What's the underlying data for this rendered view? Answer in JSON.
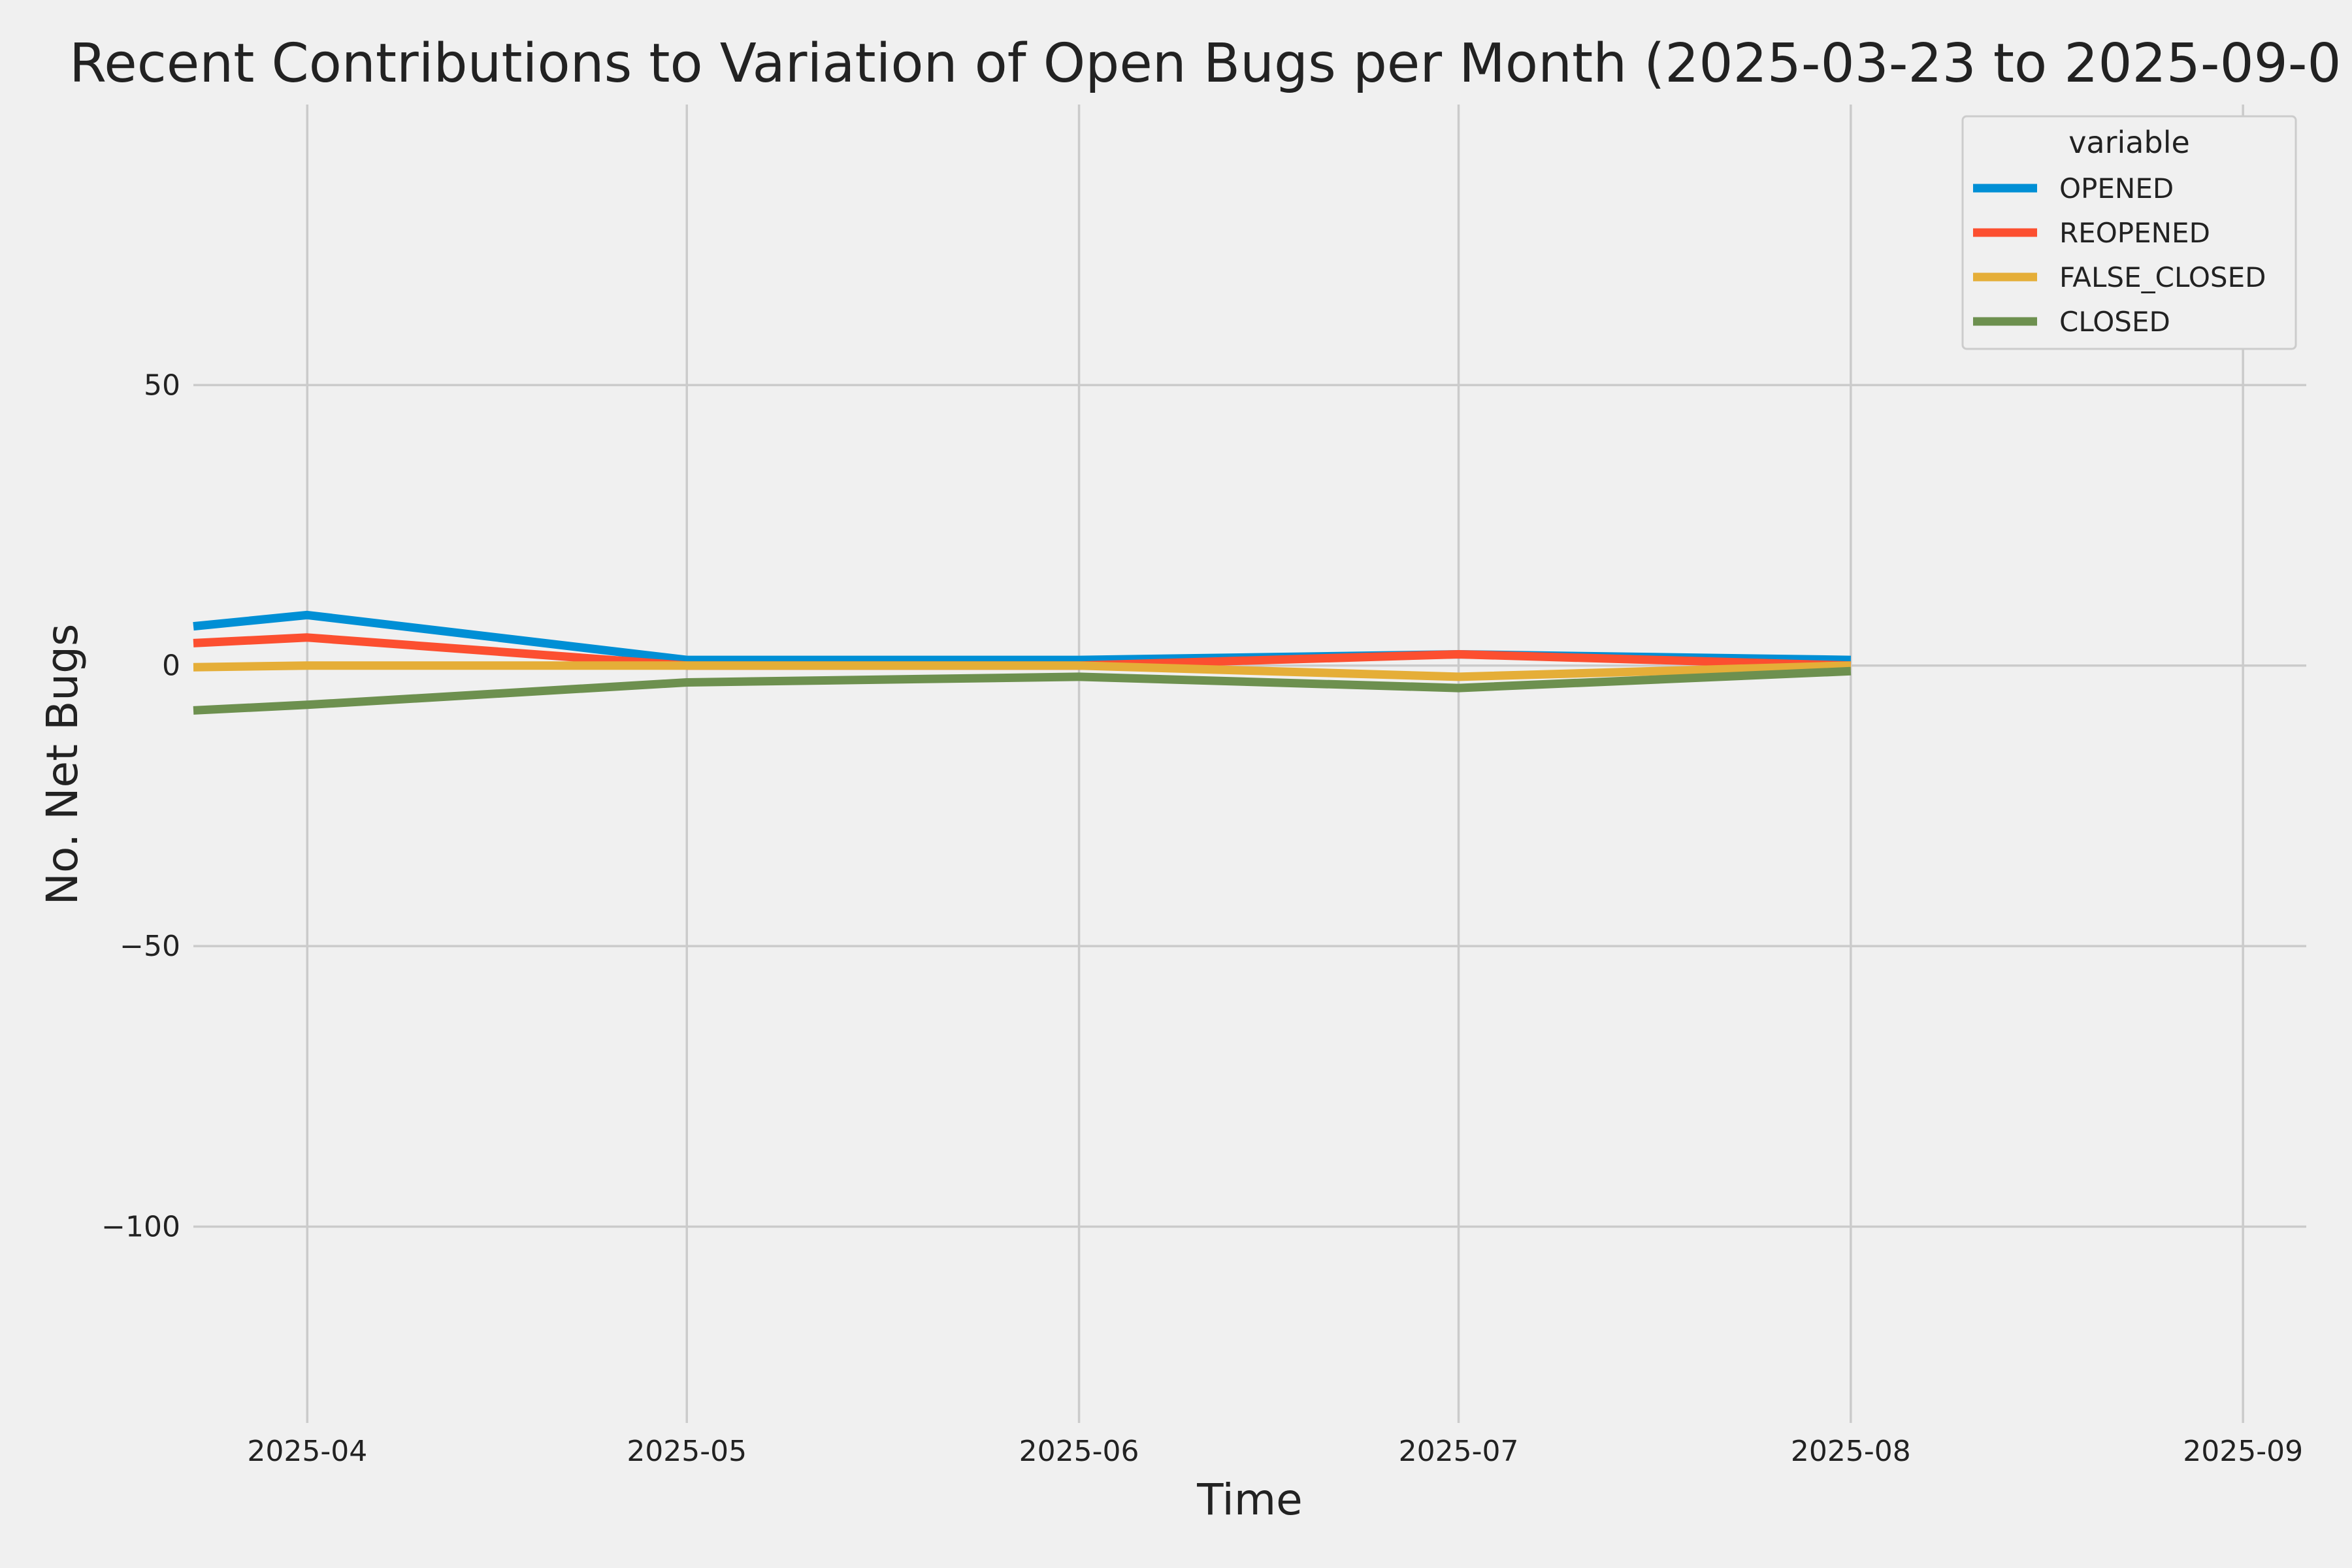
{
  "chart_data": {
    "type": "line",
    "title": "Recent Contributions to Variation of Open Bugs per Month (2025-03-23 to 2025-09-0",
    "xlabel": "Time",
    "ylabel": "No. Net Bugs",
    "x": [
      "2025-03-23",
      "2025-04-01",
      "2025-05-01",
      "2025-06-01",
      "2025-07-01",
      "2025-08-01"
    ],
    "x_ticks": [
      {
        "date": "2025-04-01",
        "label": "2025-04"
      },
      {
        "date": "2025-05-01",
        "label": "2025-05"
      },
      {
        "date": "2025-06-01",
        "label": "2025-06"
      },
      {
        "date": "2025-07-01",
        "label": "2025-07"
      },
      {
        "date": "2025-08-01",
        "label": "2025-08"
      },
      {
        "date": "2025-09-01",
        "label": "2025-09"
      }
    ],
    "xlim": [
      "2025-03-23",
      "2025-09-06"
    ],
    "y_ticks": [
      {
        "value": 50,
        "label": "50"
      },
      {
        "value": 0,
        "label": "0"
      },
      {
        "value": -50,
        "label": "−50"
      },
      {
        "value": -100,
        "label": "−100"
      }
    ],
    "ylim": [
      -135,
      100
    ],
    "grid": true,
    "legend": {
      "title": "variable",
      "position": "top-right"
    },
    "series": [
      {
        "name": "OPENED",
        "color": "#008fd5",
        "values": [
          7,
          9,
          1,
          1,
          2,
          1
        ]
      },
      {
        "name": "REOPENED",
        "color": "#fc4f30",
        "values": [
          4,
          5,
          0,
          0,
          2,
          0
        ]
      },
      {
        "name": "FALSE_CLOSED",
        "color": "#e5ae38",
        "values": [
          -0.3,
          0,
          0,
          0,
          -2,
          0
        ]
      },
      {
        "name": "CLOSED",
        "color": "#6d904f",
        "values": [
          -8,
          -7,
          -3,
          -2,
          -4,
          -1
        ]
      }
    ]
  }
}
